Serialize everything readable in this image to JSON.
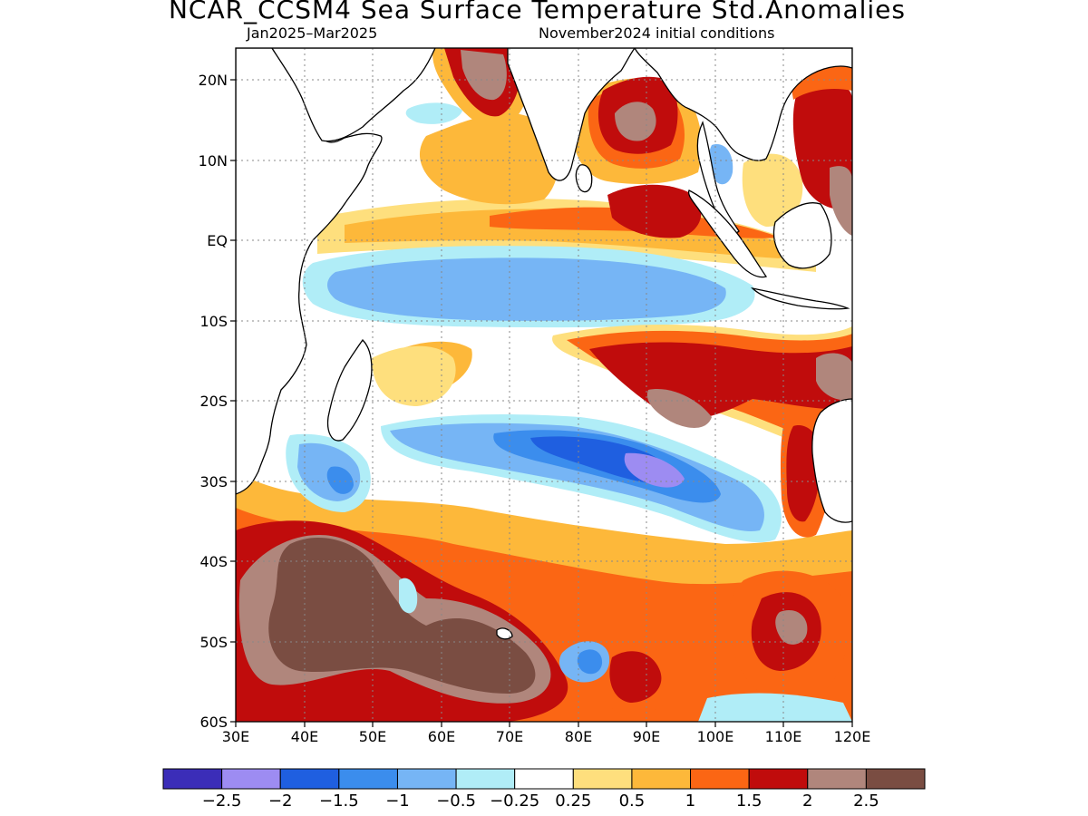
{
  "title": "NCAR_CCSM4 Sea Surface Temperature Std.Anomalies",
  "subtitle_left": "Jan2025–Mar2025",
  "subtitle_right": "November2024 initial conditions",
  "lat_labels": [
    "20N",
    "10N",
    "EQ",
    "10S",
    "20S",
    "30S",
    "40S",
    "50S",
    "60S"
  ],
  "lon_labels": [
    "30E",
    "40E",
    "50E",
    "60E",
    "70E",
    "80E",
    "90E",
    "100E",
    "110E",
    "120E"
  ],
  "colorbar": {
    "colors": [
      "#3b2db8",
      "#9d8cf2",
      "#1f5fe0",
      "#3b8ded",
      "#76b5f5",
      "#b0edf7",
      "#ffffff",
      "#fedf7d",
      "#fdb83a",
      "#fb6614",
      "#c00c0c",
      "#b0867c",
      "#7a4d42"
    ],
    "labels": [
      "−2.5",
      "−2",
      "−1.5",
      "−1",
      "−0.5",
      "−0.25",
      "0.25",
      "0.5",
      "1",
      "1.5",
      "2",
      "2.5"
    ]
  },
  "colors": {
    "land": "#ffffff",
    "coast": "#000000",
    "grid": "#888888"
  }
}
